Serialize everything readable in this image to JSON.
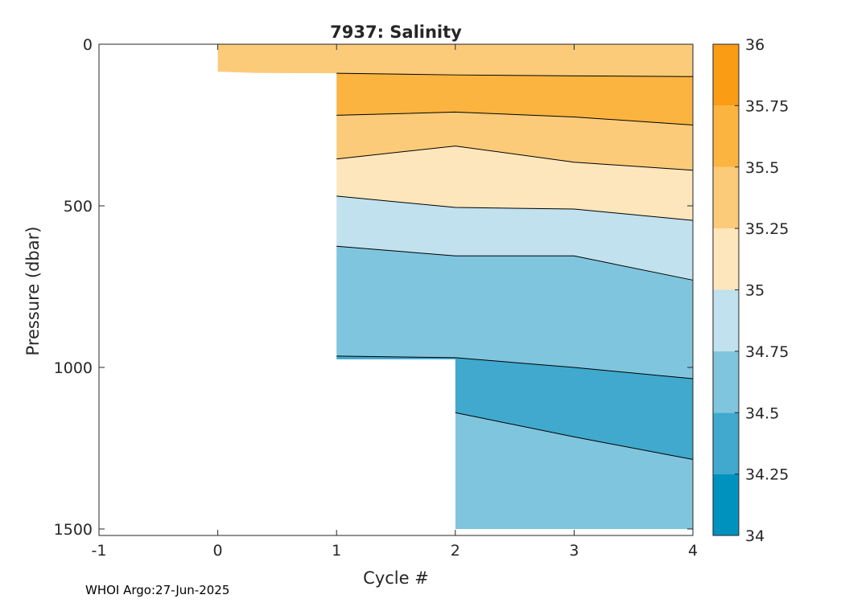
{
  "chart_data": {
    "type": "contour",
    "title": "7937:  Salinity",
    "xlabel": "Cycle #",
    "ylabel": "Pressure (dbar)",
    "xlim": [
      -1,
      4
    ],
    "ylim": [
      1520,
      0
    ],
    "y_direction": "reversed",
    "xticks": [
      -1,
      0,
      1,
      2,
      3,
      4
    ],
    "xtick_labels": [
      "-1",
      "0",
      "1",
      "2",
      "3",
      "4"
    ],
    "yticks": [
      0,
      500,
      1000,
      1500
    ],
    "ytick_labels": [
      "0",
      "500",
      "1000",
      "1500"
    ],
    "grid": false,
    "colorbar": {
      "levels": [
        34,
        34.25,
        34.5,
        34.75,
        35,
        35.25,
        35.5,
        35.75,
        36
      ],
      "tick_labels": [
        "34",
        "34.25",
        "34.5",
        "34.75",
        "35",
        "35.25",
        "35.5",
        "35.75",
        "36"
      ],
      "colors": [
        "#0092bf",
        "#40a9cd",
        "#80c5de",
        "#c0e1ed",
        "#fde6bc",
        "#fbcb7a",
        "#fbb440",
        "#fb9c15"
      ]
    },
    "profiles": [
      {
        "cycle": 0,
        "max_pressure": 85,
        "band_bounds": []
      },
      {
        "cycle": 1,
        "max_pressure": 975,
        "band_bounds": [
          {
            "value": 35.25,
            "pressure": 90
          },
          {
            "value": 35.5,
            "pressure": 220
          },
          {
            "value": 35.25,
            "pressure": 355
          },
          {
            "value": 35,
            "pressure": 470
          },
          {
            "value": 34.75,
            "pressure": 625
          },
          {
            "value": 34.5,
            "pressure": 965
          }
        ]
      },
      {
        "cycle": 2,
        "max_pressure": 1500,
        "band_bounds": [
          {
            "value": 35.25,
            "pressure": 95
          },
          {
            "value": 35.5,
            "pressure": 210
          },
          {
            "value": 35.25,
            "pressure": 315
          },
          {
            "value": 35,
            "pressure": 505
          },
          {
            "value": 34.75,
            "pressure": 655
          },
          {
            "value": 34.5,
            "pressure": 970
          },
          {
            "value": 34.25,
            "pressure": 1140
          }
        ]
      },
      {
        "cycle": 3,
        "max_pressure": 1500,
        "band_bounds": [
          {
            "value": 35.25,
            "pressure": 98
          },
          {
            "value": 35.5,
            "pressure": 225
          },
          {
            "value": 35.25,
            "pressure": 365
          },
          {
            "value": 35,
            "pressure": 510
          },
          {
            "value": 34.75,
            "pressure": 655
          },
          {
            "value": 34.5,
            "pressure": 1000
          },
          {
            "value": 34.25,
            "pressure": 1215
          }
        ]
      },
      {
        "cycle": 4,
        "max_pressure": 1500,
        "band_bounds": [
          {
            "value": 35.25,
            "pressure": 100
          },
          {
            "value": 35.5,
            "pressure": 250
          },
          {
            "value": 35.25,
            "pressure": 390
          },
          {
            "value": 35,
            "pressure": 545
          },
          {
            "value": 34.75,
            "pressure": 730
          },
          {
            "value": 34.5,
            "pressure": 1035
          },
          {
            "value": 34.25,
            "pressure": 1285
          }
        ]
      }
    ]
  },
  "footer": "WHOI Argo:27-Jun-2025"
}
